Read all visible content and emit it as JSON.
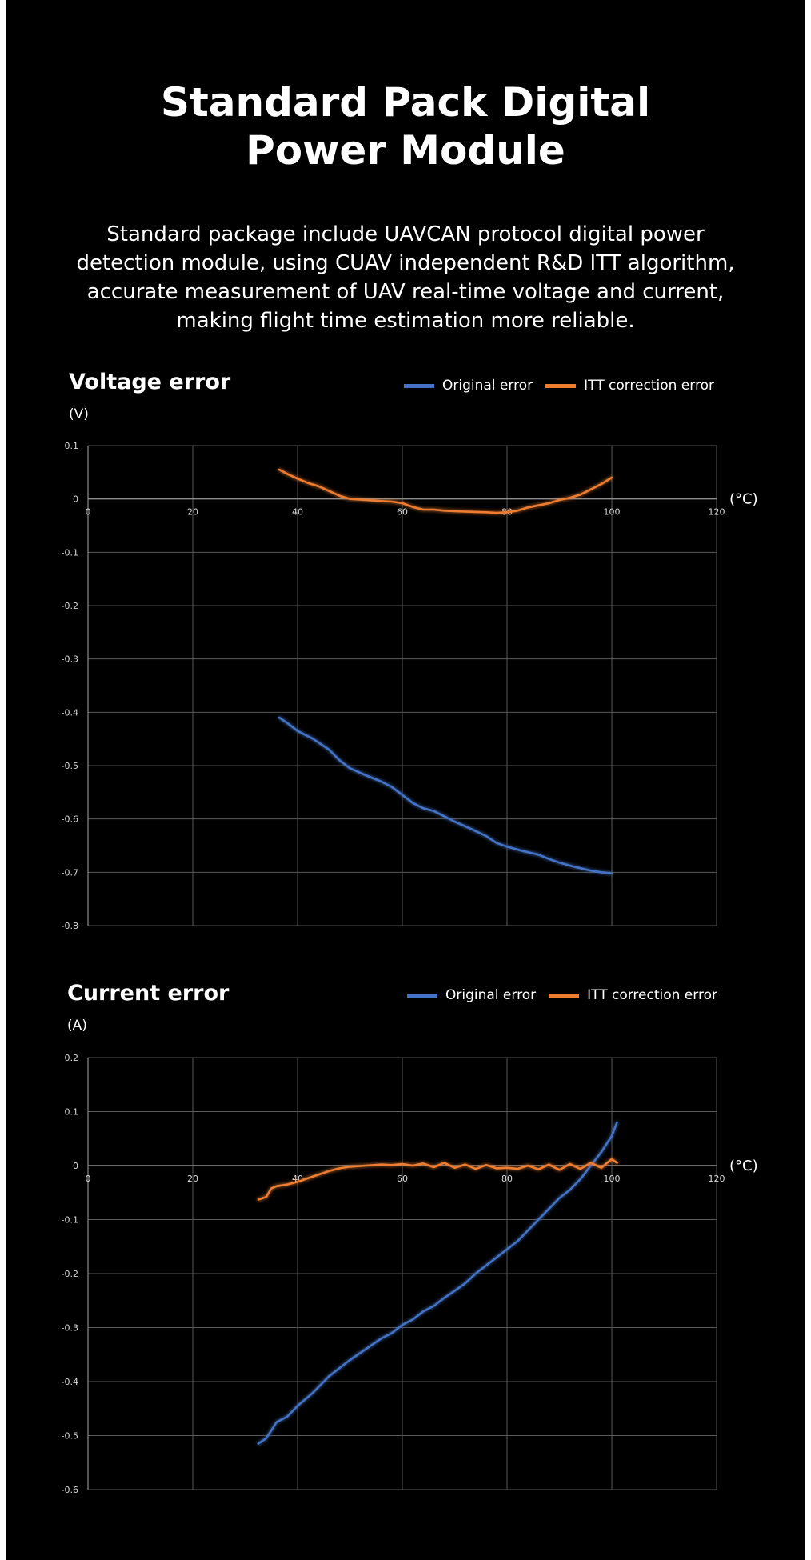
{
  "title_line1": "Standard Pack Digital",
  "title_line2": "Power Module",
  "description": "Standard package include UAVCAN protocol digital power detection module, using CUAV independent R&D ITT algorithm, accurate measurement of UAV real-time voltage and current, making flight time estimation more reliable.",
  "colors": {
    "original": "#4472c4",
    "itt": "#ed7d31",
    "grid": "#595959",
    "background": "#000000"
  },
  "chart_data": [
    {
      "type": "line",
      "title": "Voltage error",
      "ylabel": "(V)",
      "xlabel": "(°C)",
      "xlim": [
        0,
        120
      ],
      "ylim": [
        -0.8,
        0.1
      ],
      "xticks": [
        0,
        20,
        40,
        60,
        80,
        100,
        120
      ],
      "xtick_labels": [
        "0",
        "20",
        "40",
        "60",
        "80",
        "100",
        "120"
      ],
      "yticks": [
        0.1,
        0,
        -0.1,
        -0.2,
        -0.3,
        -0.4,
        -0.5,
        -0.6,
        -0.7,
        -0.8
      ],
      "ytick_labels": [
        "0.1",
        "0",
        "-0.1",
        "-0.2",
        "-0.3",
        "-0.4",
        "-0.5",
        "-0.6",
        "-0.7",
        "-0.8"
      ],
      "grid": true,
      "legend_position": "top-right",
      "series": [
        {
          "name": "Original error",
          "color": "#4472c4",
          "points": [
            [
              36.5,
              -0.41
            ],
            [
              38,
              -0.42
            ],
            [
              40,
              -0.435
            ],
            [
              43,
              -0.45
            ],
            [
              46,
              -0.47
            ],
            [
              48,
              -0.49
            ],
            [
              50,
              -0.505
            ],
            [
              53,
              -0.518
            ],
            [
              56,
              -0.53
            ],
            [
              58,
              -0.54
            ],
            [
              60,
              -0.555
            ],
            [
              62,
              -0.57
            ],
            [
              64,
              -0.58
            ],
            [
              66,
              -0.585
            ],
            [
              68,
              -0.595
            ],
            [
              70,
              -0.605
            ],
            [
              73,
              -0.618
            ],
            [
              76,
              -0.632
            ],
            [
              78,
              -0.645
            ],
            [
              80,
              -0.652
            ],
            [
              83,
              -0.66
            ],
            [
              86,
              -0.667
            ],
            [
              88,
              -0.675
            ],
            [
              90,
              -0.682
            ],
            [
              93,
              -0.69
            ],
            [
              96,
              -0.697
            ],
            [
              98,
              -0.7
            ],
            [
              100,
              -0.702
            ]
          ]
        },
        {
          "name": "ITT correction error",
          "color": "#ed7d31",
          "points": [
            [
              36.5,
              0.055
            ],
            [
              38,
              0.047
            ],
            [
              40,
              0.038
            ],
            [
              42,
              0.03
            ],
            [
              44,
              0.024
            ],
            [
              46,
              0.015
            ],
            [
              48,
              0.006
            ],
            [
              50,
              0
            ],
            [
              53,
              -0.002
            ],
            [
              56,
              -0.004
            ],
            [
              58,
              -0.005
            ],
            [
              60,
              -0.008
            ],
            [
              62,
              -0.015
            ],
            [
              64,
              -0.02
            ],
            [
              66,
              -0.02
            ],
            [
              68,
              -0.022
            ],
            [
              70,
              -0.023
            ],
            [
              73,
              -0.024
            ],
            [
              76,
              -0.025
            ],
            [
              78,
              -0.026
            ],
            [
              80,
              -0.025
            ],
            [
              82,
              -0.022
            ],
            [
              84,
              -0.016
            ],
            [
              86,
              -0.012
            ],
            [
              88,
              -0.008
            ],
            [
              90,
              -0.002
            ],
            [
              92,
              0.002
            ],
            [
              94,
              0.008
            ],
            [
              96,
              0.018
            ],
            [
              98,
              0.028
            ],
            [
              100,
              0.04
            ]
          ]
        }
      ]
    },
    {
      "type": "line",
      "title": "Current error",
      "ylabel": "(A)",
      "xlabel": "(°C)",
      "xlim": [
        0,
        120
      ],
      "ylim": [
        -0.6,
        0.2
      ],
      "xticks": [
        0,
        20,
        40,
        60,
        80,
        100,
        120
      ],
      "xtick_labels": [
        "0",
        "20",
        "40",
        "60",
        "80",
        "100",
        "120"
      ],
      "yticks": [
        0.2,
        0.1,
        0,
        -0.1,
        -0.2,
        -0.3,
        -0.4,
        -0.5,
        -0.6
      ],
      "ytick_labels": [
        "0.2",
        "0.1",
        "0",
        "-0.1",
        "-0.2",
        "-0.3",
        "-0.4",
        "-0.5",
        "-0.6"
      ],
      "grid": true,
      "legend_position": "top-right",
      "series": [
        {
          "name": "Original error",
          "color": "#4472c4",
          "points": [
            [
              32.5,
              -0.515
            ],
            [
              34,
              -0.505
            ],
            [
              35,
              -0.49
            ],
            [
              36,
              -0.475
            ],
            [
              38,
              -0.465
            ],
            [
              40,
              -0.445
            ],
            [
              43,
              -0.42
            ],
            [
              46,
              -0.39
            ],
            [
              48,
              -0.375
            ],
            [
              50,
              -0.36
            ],
            [
              53,
              -0.34
            ],
            [
              56,
              -0.32
            ],
            [
              58,
              -0.31
            ],
            [
              60,
              -0.295
            ],
            [
              62,
              -0.285
            ],
            [
              64,
              -0.27
            ],
            [
              66,
              -0.26
            ],
            [
              68,
              -0.245
            ],
            [
              70,
              -0.232
            ],
            [
              72,
              -0.218
            ],
            [
              74,
              -0.2
            ],
            [
              76,
              -0.185
            ],
            [
              78,
              -0.17
            ],
            [
              80,
              -0.155
            ],
            [
              82,
              -0.14
            ],
            [
              84,
              -0.12
            ],
            [
              86,
              -0.1
            ],
            [
              88,
              -0.08
            ],
            [
              90,
              -0.06
            ],
            [
              92,
              -0.045
            ],
            [
              94,
              -0.025
            ],
            [
              96,
              0
            ],
            [
              98,
              0.025
            ],
            [
              100,
              0.055
            ],
            [
              101,
              0.08
            ]
          ]
        },
        {
          "name": "ITT correction error",
          "color": "#ed7d31",
          "points": [
            [
              32.5,
              -0.063
            ],
            [
              34,
              -0.058
            ],
            [
              35,
              -0.042
            ],
            [
              36,
              -0.038
            ],
            [
              38,
              -0.035
            ],
            [
              40,
              -0.03
            ],
            [
              43,
              -0.02
            ],
            [
              46,
              -0.01
            ],
            [
              48,
              -0.005
            ],
            [
              50,
              -0.002
            ],
            [
              53,
              0
            ],
            [
              56,
              0.002
            ],
            [
              58,
              0.001
            ],
            [
              60,
              0.003
            ],
            [
              62,
              0
            ],
            [
              64,
              0.004
            ],
            [
              66,
              -0.003
            ],
            [
              68,
              0.005
            ],
            [
              70,
              -0.004
            ],
            [
              72,
              0.002
            ],
            [
              74,
              -0.006
            ],
            [
              76,
              0.001
            ],
            [
              78,
              -0.005
            ],
            [
              80,
              -0.004
            ],
            [
              82,
              -0.006
            ],
            [
              84,
              0
            ],
            [
              86,
              -0.007
            ],
            [
              88,
              0.002
            ],
            [
              90,
              -0.008
            ],
            [
              92,
              0.003
            ],
            [
              94,
              -0.006
            ],
            [
              96,
              0.005
            ],
            [
              98,
              -0.004
            ],
            [
              100,
              0.012
            ],
            [
              101,
              0.005
            ]
          ]
        }
      ]
    }
  ]
}
